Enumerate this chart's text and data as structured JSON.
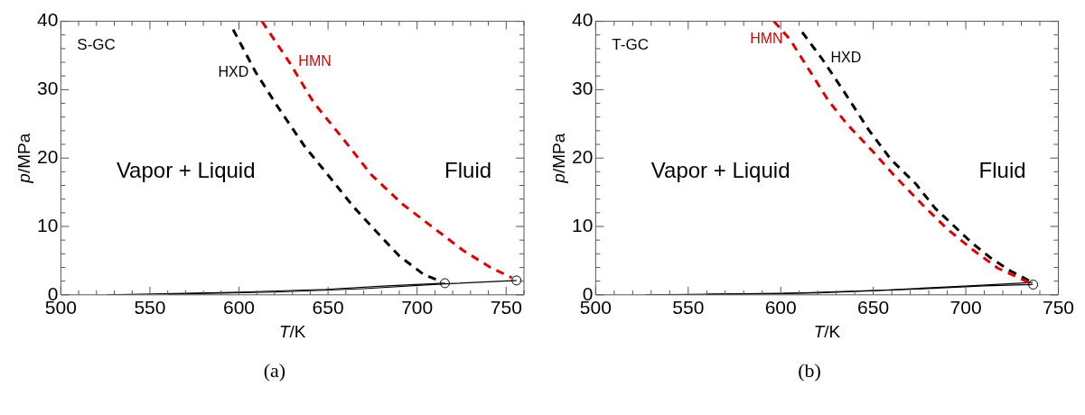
{
  "chart_data": [
    {
      "type": "line",
      "title": "(a)",
      "xlabel": "T/K",
      "ylabel": "p/MPa",
      "xlim": [
        500,
        760
      ],
      "ylim": [
        0,
        40
      ],
      "xticks": [
        500,
        {
          "value": 510,
          "label": null
        },
        {
          "value": 520,
          "label": null
        },
        {
          "value": 530,
          "label": null
        },
        {
          "value": 540,
          "label": null
        },
        550,
        {
          "value": 560,
          "label": null
        },
        {
          "value": 570,
          "label": null
        },
        {
          "value": 580,
          "label": null
        },
        {
          "value": 590,
          "label": null
        },
        600,
        {
          "value": 610,
          "label": null
        },
        {
          "value": 620,
          "label": null
        },
        {
          "value": 630,
          "label": null
        },
        {
          "value": 640,
          "label": null
        },
        650,
        {
          "value": 660,
          "label": null
        },
        {
          "value": 670,
          "label": null
        },
        {
          "value": 680,
          "label": null
        },
        {
          "value": 690,
          "label": null
        },
        700,
        {
          "value": 710,
          "label": null
        },
        {
          "value": 720,
          "label": null
        },
        {
          "value": 730,
          "label": null
        },
        {
          "value": 740,
          "label": null
        },
        750,
        {
          "value": 760,
          "label": null
        }
      ],
      "yticks": [
        0,
        {
          "value": 2,
          "label": null
        },
        {
          "value": 4,
          "label": null
        },
        {
          "value": 6,
          "label": null
        },
        {
          "value": 8,
          "label": null
        },
        10,
        {
          "value": 12,
          "label": null
        },
        {
          "value": 14,
          "label": null
        },
        {
          "value": 16,
          "label": null
        },
        {
          "value": 18,
          "label": null
        },
        20,
        {
          "value": 22,
          "label": null
        },
        {
          "value": 24,
          "label": null
        },
        {
          "value": 26,
          "label": null
        },
        {
          "value": 28,
          "label": null
        },
        30,
        {
          "value": 32,
          "label": null
        },
        {
          "value": 34,
          "label": null
        },
        {
          "value": 36,
          "label": null
        },
        {
          "value": 38,
          "label": null
        },
        40
      ],
      "annotations": [
        "S-GC",
        "Vapor + Liquid",
        "Fluid"
      ],
      "series": [
        {
          "name": "HXD",
          "line_style": "dashed",
          "color": "#000000",
          "x": [
            596.7,
            609.5,
            621.5,
            636.9,
            648.8,
            664.2,
            676.2,
            689.9,
            703.6,
            713.9
          ],
          "values": [
            38.8,
            32.5,
            27.6,
            21.7,
            17.9,
            12.9,
            9.5,
            5.7,
            3.0,
            1.9
          ]
        },
        {
          "name": "HMN",
          "line_style": "dashed",
          "color": "#e00000",
          "x": [
            612.9,
            628.3,
            642.0,
            659.1,
            674.5,
            691.6,
            708.7,
            725.8,
            741.2,
            753.2
          ],
          "values": [
            40,
            34.0,
            28.1,
            22.6,
            17.5,
            13.3,
            9.9,
            6.5,
            4.0,
            2.5
          ]
        },
        {
          "type": "line",
          "line_style": "solid",
          "color": "#000000",
          "x": [
            525.7,
            601,
            648.8,
            683,
            715.6
          ],
          "values": [
            0,
            0.4,
            0.8,
            1.3,
            1.7
          ]
        },
        {
          "type": "line",
          "line_style": "solid",
          "color": "#000000",
          "x": [
            560,
            620,
            670,
            715.6,
            755.8
          ],
          "values": [
            0.1,
            0.4,
            0.9,
            1.6,
            2.1
          ]
        },
        {
          "type": "scatter",
          "marker": "circle",
          "color": "#000000",
          "x": [
            715.6,
            755.8
          ],
          "values": [
            1.7,
            2.1
          ]
        }
      ]
    },
    {
      "type": "line",
      "title": "(b)",
      "xlabel": "T/K",
      "ylabel": "p/MPa",
      "xlim": [
        500,
        750
      ],
      "ylim": [
        0,
        40
      ],
      "xticks": [
        500,
        {
          "value": 510,
          "label": null
        },
        {
          "value": 520,
          "label": null
        },
        {
          "value": 530,
          "label": null
        },
        {
          "value": 540,
          "label": null
        },
        550,
        {
          "value": 560,
          "label": null
        },
        {
          "value": 570,
          "label": null
        },
        {
          "value": 580,
          "label": null
        },
        {
          "value": 590,
          "label": null
        },
        600,
        {
          "value": 610,
          "label": null
        },
        {
          "value": 620,
          "label": null
        },
        {
          "value": 630,
          "label": null
        },
        {
          "value": 640,
          "label": null
        },
        650,
        {
          "value": 660,
          "label": null
        },
        {
          "value": 670,
          "label": null
        },
        {
          "value": 680,
          "label": null
        },
        {
          "value": 690,
          "label": null
        },
        700,
        {
          "value": 710,
          "label": null
        },
        {
          "value": 720,
          "label": null
        },
        {
          "value": 730,
          "label": null
        },
        {
          "value": 740,
          "label": null
        },
        750
      ],
      "yticks": [
        0,
        {
          "value": 2,
          "label": null
        },
        {
          "value": 4,
          "label": null
        },
        {
          "value": 6,
          "label": null
        },
        {
          "value": 8,
          "label": null
        },
        10,
        {
          "value": 12,
          "label": null
        },
        {
          "value": 14,
          "label": null
        },
        {
          "value": 16,
          "label": null
        },
        {
          "value": 18,
          "label": null
        },
        20,
        {
          "value": 22,
          "label": null
        },
        {
          "value": 24,
          "label": null
        },
        {
          "value": 26,
          "label": null
        },
        {
          "value": 28,
          "label": null
        },
        30,
        {
          "value": 32,
          "label": null
        },
        {
          "value": 34,
          "label": null
        },
        {
          "value": 36,
          "label": null
        },
        {
          "value": 38,
          "label": null
        },
        40
      ],
      "annotations": [
        "T-GC",
        "Vapor + Liquid",
        "Fluid"
      ],
      "series": [
        {
          "name": "HMN",
          "line_style": "dashed",
          "color": "#e00000",
          "x": [
            596.3,
            605.1,
            615.3,
            625.5,
            635.7,
            649.3,
            661.2,
            676.5,
            690.1,
            703.7,
            717.3,
            730.9,
            736.1
          ],
          "values": [
            40,
            37.3,
            32.9,
            28.5,
            25.0,
            21.1,
            17.5,
            13.2,
            9.6,
            6.6,
            3.9,
            2.2,
            1.5
          ]
        },
        {
          "name": "HXD",
          "line_style": "dashed",
          "color": "#000000",
          "x": [
            611.6,
            622.1,
            634.0,
            647.6,
            659.5,
            673.1,
            683.3,
            693.5,
            703.7,
            713.9,
            724.1,
            736.1
          ],
          "values": [
            38.4,
            34.6,
            29.8,
            24.1,
            19.8,
            16.2,
            12.7,
            10.1,
            7.5,
            5.3,
            3.5,
            1.8
          ]
        },
        {
          "type": "line",
          "line_style": "solid",
          "color": "#000000",
          "x": [
            526.9,
            601.7,
            656.1,
            701.7,
            736.1
          ],
          "values": [
            0,
            0.2,
            0.7,
            1.3,
            1.8
          ]
        },
        {
          "type": "line",
          "line_style": "solid",
          "color": "#000000",
          "x": [
            560,
            620,
            670,
            710,
            736.1
          ],
          "values": [
            0.1,
            0.3,
            0.8,
            1.3,
            1.5
          ]
        },
        {
          "type": "scatter",
          "marker": "circle",
          "color": "#000000",
          "x": [
            736.4
          ],
          "values": [
            1.5
          ]
        }
      ]
    }
  ]
}
